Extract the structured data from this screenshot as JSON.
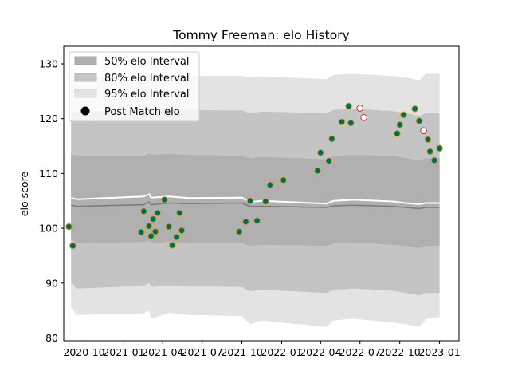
{
  "chart_data": {
    "type": "scatter",
    "title": "Tommy Freeman: elo History",
    "xlabel": "",
    "ylabel": "elo score",
    "ylim": [
      79.5,
      133.2
    ],
    "xlim": [
      "2020-08-15",
      "2023-02-15"
    ],
    "y_ticks": [
      80,
      90,
      100,
      110,
      120,
      130
    ],
    "x_ticks": [
      {
        "date": "2020-10-01",
        "label": "2020-10"
      },
      {
        "date": "2021-01-01",
        "label": "2021-01"
      },
      {
        "date": "2021-04-01",
        "label": "2021-04"
      },
      {
        "date": "2021-07-01",
        "label": "2021-07"
      },
      {
        "date": "2021-10-01",
        "label": "2021-10"
      },
      {
        "date": "2022-01-01",
        "label": "2022-01"
      },
      {
        "date": "2022-04-01",
        "label": "2022-04"
      },
      {
        "date": "2022-07-01",
        "label": "2022-07"
      },
      {
        "date": "2022-10-01",
        "label": "2022-10"
      },
      {
        "date": "2023-01-01",
        "label": "2023-01"
      }
    ],
    "legend": {
      "placement": "top-left",
      "entries": [
        "50% elo Interval",
        "80% elo Interval",
        "95% elo Interval",
        "Post Match elo"
      ]
    },
    "colors": {
      "band_50": "#b0b0b0",
      "band_80": "#c4c4c4",
      "band_95": "#e3e3e3",
      "median_line": "#7a7a7a",
      "mean_line": "#ffffff",
      "point_fill": "#006b5c",
      "point_edge": "#d4a017",
      "future_fill": "#ffffff",
      "future_edge": "#d62728"
    },
    "bands": {
      "x": [
        "2020-09-01",
        "2020-09-15",
        "2021-02-15",
        "2021-03-01",
        "2021-03-05",
        "2021-04-15",
        "2021-06-01",
        "2021-10-01",
        "2021-10-20",
        "2021-11-15",
        "2022-04-15",
        "2022-05-01",
        "2022-06-15",
        "2022-09-15",
        "2022-10-15",
        "2022-11-15",
        "2022-12-01",
        "2023-01-01"
      ],
      "p95_high": [
        127.2,
        127.5,
        127.5,
        128.2,
        127.8,
        128.0,
        127.8,
        127.8,
        127.5,
        127.7,
        127.2,
        128.0,
        128.2,
        127.8,
        127.5,
        127.0,
        128.2,
        128.2
      ],
      "p80_high": [
        121.0,
        121.3,
        121.5,
        122.0,
        121.6,
        121.8,
        121.6,
        121.5,
        121.0,
        121.3,
        121.0,
        121.6,
        121.8,
        121.4,
        121.0,
        120.5,
        121.0,
        121.0
      ],
      "p50_high": [
        113.5,
        113.2,
        113.2,
        113.7,
        113.4,
        113.6,
        113.4,
        113.2,
        112.8,
        113.0,
        112.6,
        113.2,
        113.4,
        113.2,
        112.8,
        112.4,
        112.8,
        112.8
      ],
      "median": [
        104.2,
        104.0,
        104.3,
        104.8,
        104.3,
        104.6,
        104.5,
        104.6,
        104.0,
        104.0,
        103.8,
        104.1,
        104.2,
        104.0,
        103.8,
        103.6,
        103.8,
        103.8
      ],
      "mean": [
        105.5,
        105.3,
        105.8,
        106.2,
        105.6,
        105.8,
        105.5,
        105.6,
        104.8,
        105.0,
        104.5,
        105.0,
        105.2,
        104.9,
        104.6,
        104.4,
        104.6,
        104.6
      ],
      "p50_low": [
        98.0,
        97.3,
        97.5,
        97.8,
        97.3,
        97.5,
        97.3,
        97.3,
        96.8,
        97.0,
        96.8,
        97.2,
        97.4,
        97.0,
        96.8,
        96.4,
        96.8,
        96.8
      ],
      "p80_low": [
        90.0,
        89.0,
        89.5,
        90.0,
        89.3,
        89.6,
        89.4,
        89.3,
        88.5,
        88.8,
        88.2,
        88.8,
        89.0,
        88.6,
        88.2,
        87.8,
        88.2,
        88.2
      ],
      "p95_low": [
        85.5,
        84.2,
        84.5,
        85.0,
        83.5,
        84.6,
        84.2,
        84.0,
        82.5,
        83.2,
        82.0,
        83.2,
        83.5,
        82.8,
        82.5,
        82.0,
        83.5,
        83.8
      ]
    },
    "series": [
      {
        "name": "Post Match elo",
        "points": [
          {
            "x": "2020-08-27",
            "y": 100.3
          },
          {
            "x": "2020-09-05",
            "y": 96.8
          },
          {
            "x": "2021-02-10",
            "y": 99.3
          },
          {
            "x": "2021-02-16",
            "y": 103.1
          },
          {
            "x": "2021-02-28",
            "y": 100.4
          },
          {
            "x": "2021-03-05",
            "y": 98.6
          },
          {
            "x": "2021-03-10",
            "y": 101.7
          },
          {
            "x": "2021-03-15",
            "y": 99.4
          },
          {
            "x": "2021-03-20",
            "y": 102.8
          },
          {
            "x": "2021-04-05",
            "y": 105.2
          },
          {
            "x": "2021-04-15",
            "y": 100.3
          },
          {
            "x": "2021-04-23",
            "y": 96.9
          },
          {
            "x": "2021-05-03",
            "y": 98.4
          },
          {
            "x": "2021-05-10",
            "y": 102.8
          },
          {
            "x": "2021-05-15",
            "y": 99.6
          },
          {
            "x": "2021-09-25",
            "y": 99.4
          },
          {
            "x": "2021-10-10",
            "y": 101.2
          },
          {
            "x": "2021-10-20",
            "y": 105.0
          },
          {
            "x": "2021-11-05",
            "y": 101.4
          },
          {
            "x": "2021-11-25",
            "y": 104.9
          },
          {
            "x": "2021-12-05",
            "y": 107.9
          },
          {
            "x": "2022-01-05",
            "y": 108.8
          },
          {
            "x": "2022-03-25",
            "y": 110.5
          },
          {
            "x": "2022-04-01",
            "y": 113.8
          },
          {
            "x": "2022-04-20",
            "y": 112.3
          },
          {
            "x": "2022-04-27",
            "y": 116.3
          },
          {
            "x": "2022-05-20",
            "y": 119.4
          },
          {
            "x": "2022-06-05",
            "y": 122.3
          },
          {
            "x": "2022-06-10",
            "y": 119.2
          },
          {
            "x": "2022-09-25",
            "y": 117.3
          },
          {
            "x": "2022-10-01",
            "y": 118.9
          },
          {
            "x": "2022-10-10",
            "y": 120.7
          },
          {
            "x": "2022-11-05",
            "y": 121.8
          },
          {
            "x": "2022-11-15",
            "y": 119.6
          },
          {
            "x": "2022-12-05",
            "y": 116.2
          },
          {
            "x": "2022-12-10",
            "y": 114.0
          },
          {
            "x": "2022-12-20",
            "y": 112.4
          },
          {
            "x": "2023-01-01",
            "y": 114.6
          }
        ]
      },
      {
        "points": [
          {
            "x": "2022-07-01",
            "y": 121.9
          },
          {
            "x": "2022-07-10",
            "y": 120.2
          },
          {
            "x": "2022-11-25",
            "y": 117.8
          }
        ]
      }
    ]
  }
}
